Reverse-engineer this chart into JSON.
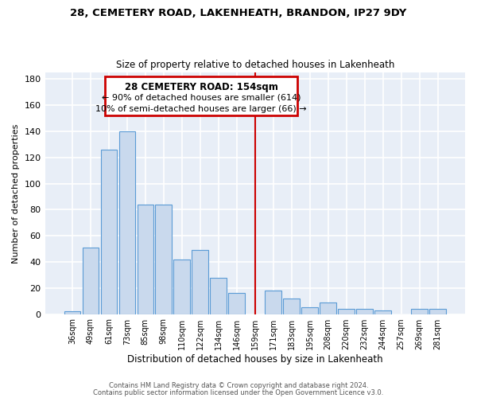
{
  "title1": "28, CEMETERY ROAD, LAKENHEATH, BRANDON, IP27 9DY",
  "title2": "Size of property relative to detached houses in Lakenheath",
  "xlabel": "Distribution of detached houses by size in Lakenheath",
  "ylabel": "Number of detached properties",
  "bar_labels": [
    "36sqm",
    "49sqm",
    "61sqm",
    "73sqm",
    "85sqm",
    "98sqm",
    "110sqm",
    "122sqm",
    "134sqm",
    "146sqm",
    "159sqm",
    "171sqm",
    "183sqm",
    "195sqm",
    "208sqm",
    "220sqm",
    "232sqm",
    "244sqm",
    "257sqm",
    "269sqm",
    "281sqm"
  ],
  "bar_values": [
    2,
    51,
    126,
    140,
    84,
    84,
    42,
    49,
    28,
    16,
    0,
    18,
    12,
    5,
    9,
    4,
    4,
    3,
    0,
    4,
    4
  ],
  "bar_color": "#c9d9ed",
  "bar_edge_color": "#5b9bd5",
  "bg_color": "#e8eef7",
  "grid_color": "#ffffff",
  "vline_x": 10.0,
  "vline_color": "#cc0000",
  "annotation_title": "28 CEMETERY ROAD: 154sqm",
  "annotation_line1": "← 90% of detached houses are smaller (614)",
  "annotation_line2": "10% of semi-detached houses are larger (66) →",
  "annotation_box_color": "#cc0000",
  "ylim": [
    0,
    185
  ],
  "footer1": "Contains HM Land Registry data © Crown copyright and database right 2024.",
  "footer2": "Contains public sector information licensed under the Open Government Licence v3.0."
}
